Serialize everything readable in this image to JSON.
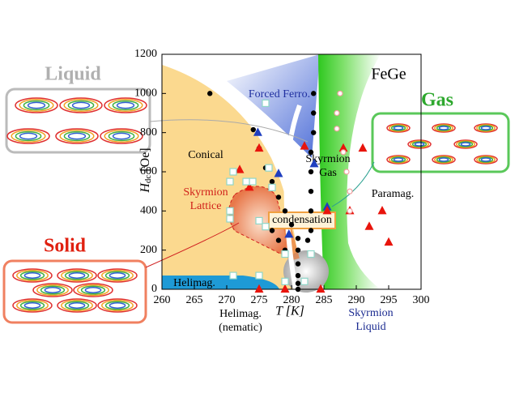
{
  "chart_data": {
    "type": "scatter",
    "xlabel": "T [K]",
    "ylabel": "H",
    "ylabel_sub": "dc",
    "ylabel_unit": "[Oe]",
    "xlim": [
      260,
      300
    ],
    "xticks": [
      260,
      265,
      270,
      275,
      280,
      285,
      290,
      295,
      300
    ],
    "ylim": [
      0,
      1200
    ],
    "yticks": [
      0,
      200,
      400,
      600,
      800,
      1000,
      1200
    ],
    "grid": false,
    "series": [
      {
        "name": "dot",
        "marker": "circle",
        "color": "#000000",
        "filled": true,
        "x": [
          267.4,
          274.1,
          275,
          276,
          277,
          278,
          279,
          280,
          281,
          281,
          281,
          281,
          281,
          281,
          283.4,
          283.4,
          283.4,
          283,
          283,
          283,
          283,
          283,
          282.5,
          279,
          278,
          277
        ],
        "y": [
          1000,
          815,
          720,
          620,
          550,
          470,
          400,
          330,
          260,
          200,
          130,
          70,
          30,
          0,
          1000,
          900,
          800,
          700,
          600,
          500,
          400,
          300,
          250,
          200,
          250,
          300
        ]
      },
      {
        "name": "blue",
        "marker": "triangle",
        "color": "#1f3fbf",
        "filled": true,
        "x": [
          274.8,
          278,
          283.5,
          279.6,
          285.5
        ],
        "y": [
          800,
          590,
          640,
          280,
          420
        ]
      },
      {
        "name": "red",
        "marker": "triangle",
        "color": "#e8140c",
        "filled": true,
        "x": [
          275,
          272,
          273.5,
          282,
          288,
          291,
          285.5,
          289,
          294,
          292,
          295,
          275,
          279,
          284.5
        ],
        "y": [
          720,
          610,
          520,
          730,
          720,
          720,
          400,
          400,
          400,
          320,
          240,
          0,
          0,
          0
        ]
      },
      {
        "name": "square",
        "marker": "square",
        "color": "#8fd6c8",
        "filled": false,
        "x": [
          276,
          274,
          273,
          270.5,
          271,
          270.5,
          270.5,
          276.5,
          277,
          275,
          276,
          271,
          275,
          279,
          282,
          279,
          283
        ],
        "y": [
          950,
          550,
          550,
          550,
          600,
          400,
          360,
          620,
          520,
          350,
          320,
          70,
          70,
          40,
          40,
          180,
          180
        ]
      },
      {
        "name": "open",
        "marker": "circle",
        "color": "#f2a0a0",
        "filled": false,
        "x": [
          287.5,
          287,
          287,
          288,
          288.5,
          289,
          289
        ],
        "y": [
          1000,
          900,
          820,
          700,
          600,
          500,
          400
        ]
      }
    ],
    "annotations": {
      "material": "FeGe",
      "forced_ferro": "Forced Ferro.",
      "conical": "Conical",
      "skyrmion_lattice": [
        "Skyrmion",
        "Lattice"
      ],
      "skyrmion_gas": [
        "Skyrmion",
        "Gas"
      ],
      "paramag": "Paramag.",
      "helimag": "Helimag.",
      "condensation": "condensation",
      "helimag_nematic": [
        "Helimag.",
        "(nematic)"
      ],
      "skyrmion_liquid": [
        "Skyrmion",
        "Liquid"
      ],
      "liquid": "Liquid",
      "gas": "Gas",
      "solid": "Solid"
    }
  }
}
